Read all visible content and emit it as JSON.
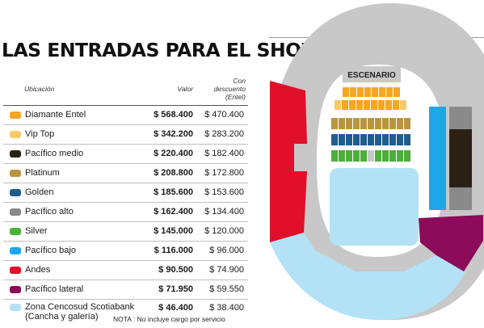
{
  "title": "LAS ENTRADAS PARA EL SHOW",
  "table": {
    "headers": {
      "location": "Ubicación",
      "value": "Valor",
      "discount": [
        "Con",
        "descuento",
        "(Entel)"
      ]
    },
    "rows": [
      {
        "label": "Diamante Entel",
        "price": "$ 568.400",
        "discount": "$ 470.400",
        "color": "#f5a623"
      },
      {
        "label": "Vip Top",
        "price": "$ 342.200",
        "discount": "$ 283.200",
        "color": "#f9c86a"
      },
      {
        "label": "Pacífico medio",
        "price": "$ 220.400",
        "discount": "$ 182.400",
        "color": "#2b2014"
      },
      {
        "label": "Platinum",
        "price": "$ 208.800",
        "discount": "$ 172.800",
        "color": "#b9953f"
      },
      {
        "label": "Golden",
        "price": "$ 185.600",
        "discount": "$ 153.600",
        "color": "#1e5d8c"
      },
      {
        "label": "Pacífico alto",
        "price": "$ 162.400",
        "discount": "$ 134.400",
        "color": "#8a8a8a"
      },
      {
        "label": "Silver",
        "price": "$ 145.000",
        "discount": "$ 120.000",
        "color": "#4caf3a"
      },
      {
        "label": "Pacífico bajo",
        "price": "$ 116.000",
        "discount": "$ 96.000",
        "color": "#1ea7e8"
      },
      {
        "label": "Andes",
        "price": "$ 90.500",
        "discount": "$ 74.900",
        "color": "#e0102a"
      },
      {
        "label": "Pacífico lateral",
        "price": "$ 71.950",
        "discount": "$ 59.550",
        "color": "#8c0b5a"
      },
      {
        "label": "Zona Cencosud Scotiabank",
        "label2": "(Cancha y galería)",
        "price": "$ 46.400",
        "discount": "$ 38.400",
        "color": "#b3e2f7"
      }
    ]
  },
  "map": {
    "stage_label": "ESCENARIO",
    "colors": {
      "outer_ring": "#c8c8c8",
      "track": "#ffffff",
      "andes": "#e0102a",
      "lateral": "#8c0b5a",
      "cancha": "#b3e2f7",
      "pacifico_bajo": "#1ea7e8",
      "pacifico_medio": "#2b2014",
      "pacifico_alto": "#8a8a8a",
      "diamante": "#f5a623",
      "vip": "#f9c86a",
      "platinum": "#b9953f",
      "golden": "#1e5d8c",
      "silver": "#4caf3a"
    }
  },
  "footnote": "NOTA : No incluye cargo por servicio"
}
